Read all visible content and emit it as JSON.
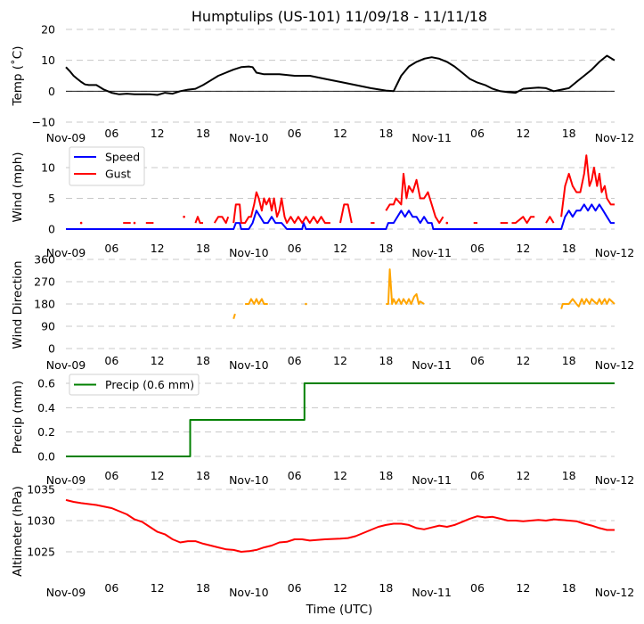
{
  "title": "Humptulips (US-101) 11/09/18 - 11/11/18",
  "xlabel": "Time (UTC)",
  "x_tick_labels": [
    "Nov-09",
    "06",
    "12",
    "18",
    "Nov-10",
    "06",
    "12",
    "18",
    "Nov-11",
    "06",
    "12",
    "18",
    "Nov-12"
  ],
  "x_tick_hours": [
    0,
    6,
    12,
    18,
    24,
    30,
    36,
    42,
    48,
    54,
    60,
    66,
    72
  ],
  "chart_data": [
    {
      "type": "line",
      "id": "temp",
      "ylabel": "Temp ($^\\circ$C)",
      "ylabel_display": "Temp (˚C)",
      "ylim": [
        -10,
        20
      ],
      "yticks": [
        -10,
        0,
        10,
        20
      ],
      "ytick_labels": [
        "−10",
        "0",
        "10",
        "20"
      ],
      "zero_line": true,
      "grid": true,
      "x_unit": "hours since Nov-09 00:00 UTC",
      "series": [
        {
          "name": "Temp",
          "color": "#000000",
          "x": [
            0,
            0.5,
            1,
            1.5,
            2,
            2.5,
            3,
            4,
            5,
            6,
            7,
            8,
            9,
            10,
            11,
            12,
            13,
            14,
            15,
            16,
            17,
            18,
            19,
            20,
            21,
            22,
            23,
            24,
            24.5,
            25,
            26,
            28,
            30,
            32,
            34,
            36,
            38,
            40,
            42,
            43,
            44,
            45,
            46,
            47,
            48,
            49,
            50,
            51,
            52,
            53,
            54,
            55,
            56,
            57,
            58,
            59,
            60,
            61,
            62,
            63,
            64,
            65,
            66,
            67,
            68,
            69,
            70,
            71,
            72
          ],
          "y": [
            7.8,
            6.5,
            5,
            4,
            3,
            2.2,
            2,
            2,
            0.5,
            -0.5,
            -1,
            -0.8,
            -1,
            -1,
            -1,
            -1.2,
            -0.5,
            -0.8,
            0,
            0.5,
            0.8,
            2,
            3.5,
            5,
            6,
            7,
            7.8,
            8,
            7.8,
            6,
            5.5,
            5.5,
            5,
            5,
            4,
            3,
            2,
            1,
            0.2,
            0,
            5,
            8,
            9.5,
            10.5,
            11,
            10.5,
            9.5,
            8,
            6,
            4,
            2.8,
            2,
            0.8,
            0,
            -0.3,
            -0.5,
            0.8,
            1,
            1.2,
            1,
            0,
            0.5,
            1,
            3,
            5,
            7,
            9.5,
            11.5,
            10
          ]
        }
      ]
    },
    {
      "type": "line",
      "id": "wind",
      "ylabel": "Wind (mph)",
      "ylim": [
        0,
        13
      ],
      "yticks": [
        0,
        5,
        10
      ],
      "ytick_labels": [
        "0",
        "5",
        "10"
      ],
      "grid": true,
      "legend": "top-left",
      "series": [
        {
          "name": "Speed",
          "color": "#0000ff",
          "x": [
            0,
            22,
            22.3,
            22.8,
            23,
            24,
            24.5,
            25,
            25.5,
            26,
            26.5,
            27,
            27.5,
            28,
            28.3,
            29,
            30,
            31,
            31.2,
            31.5,
            32,
            42,
            42.3,
            42.5,
            43,
            44,
            44.5,
            45,
            45.5,
            46,
            46.5,
            47,
            47.5,
            48,
            48.2,
            49,
            60,
            65,
            65.5,
            66,
            66.5,
            67,
            67.5,
            68,
            68.5,
            69,
            69.5,
            70,
            70.5,
            71,
            71.5,
            72
          ],
          "y": [
            0,
            0,
            1,
            1,
            0,
            0,
            1,
            3,
            2,
            1,
            1,
            2,
            1,
            1,
            1,
            0,
            0,
            0,
            1,
            0,
            0,
            0,
            1,
            1,
            1,
            3,
            2,
            3,
            2,
            2,
            1,
            2,
            1,
            1,
            0,
            0,
            0,
            0,
            2,
            3,
            2,
            3,
            3,
            4,
            3,
            4,
            3,
            4,
            3,
            2,
            1,
            1
          ]
        },
        {
          "name": "Gust",
          "color": "#ff0000",
          "segments": [
            {
              "x": [
                2
              ],
              "y": [
                1
              ]
            },
            {
              "x": [
                7.5,
                8.5
              ],
              "y": [
                1,
                1
              ]
            },
            {
              "x": [
                9
              ],
              "y": [
                1
              ]
            },
            {
              "x": [
                10.5,
                11.5
              ],
              "y": [
                1,
                1
              ]
            },
            {
              "x": [
                15.5
              ],
              "y": [
                2
              ]
            },
            {
              "x": [
                17,
                17.3,
                17.6,
                18
              ],
              "y": [
                1,
                2,
                1,
                1
              ]
            },
            {
              "x": [
                19.5,
                20,
                20.5,
                21,
                21.3
              ],
              "y": [
                1,
                2,
                2,
                1,
                2
              ]
            },
            {
              "x": [
                22,
                22.3,
                22.8,
                23,
                23.5,
                24,
                24.3,
                24.7,
                25,
                25.3,
                25.7,
                26,
                26.3,
                26.7,
                27,
                27.3,
                27.7,
                28,
                28.3,
                28.7,
                29,
                29.5,
                30,
                30.5,
                31,
                31.5,
                32,
                32.5,
                33,
                33.5,
                34,
                34.3,
                34.7
              ],
              "y": [
                1,
                4,
                4,
                1,
                1,
                2,
                2,
                4,
                6,
                5,
                3,
                5,
                4,
                5,
                3,
                5,
                2,
                3,
                5,
                2,
                1,
                2,
                1,
                2,
                1,
                2,
                1,
                2,
                1,
                2,
                1,
                1,
                1
              ]
            },
            {
              "x": [
                36,
                36.5,
                37,
                37.5
              ],
              "y": [
                1,
                4,
                4,
                1
              ]
            },
            {
              "x": [
                40,
                40.5
              ],
              "y": [
                1,
                1
              ]
            },
            {
              "x": [
                42,
                42.5,
                43,
                43.3,
                44,
                44.3,
                44.7,
                45,
                45.5,
                46,
                46.5,
                47,
                47.5,
                48,
                48.5,
                49,
                49.5
              ],
              "y": [
                3,
                4,
                4,
                5,
                4,
                9,
                5,
                7,
                6,
                8,
                5,
                5,
                6,
                4,
                2,
                1,
                2
              ]
            },
            {
              "x": [
                50
              ],
              "y": [
                1
              ]
            },
            {
              "x": [
                53.5,
                54
              ],
              "y": [
                1,
                1
              ]
            },
            {
              "x": [
                57,
                58
              ],
              "y": [
                1,
                1
              ]
            },
            {
              "x": [
                58.5,
                59,
                60,
                60.5,
                61,
                61.5
              ],
              "y": [
                1,
                1,
                2,
                1,
                2,
                2
              ]
            },
            {
              "x": [
                63,
                63.5,
                64
              ],
              "y": [
                1,
                2,
                1
              ]
            },
            {
              "x": [
                65,
                65.5,
                66,
                66.5,
                67,
                67.5,
                68,
                68.3,
                68.7,
                69,
                69.3,
                69.7,
                70,
                70.3,
                70.7,
                71,
                71.5,
                72
              ],
              "y": [
                2,
                7,
                9,
                7,
                6,
                6,
                9,
                12,
                7,
                8,
                10,
                7,
                9,
                6,
                7,
                5,
                4,
                4
              ]
            }
          ]
        }
      ]
    },
    {
      "type": "line",
      "id": "wind_direction",
      "ylabel": "Wind Direction",
      "ylim": [
        0,
        360
      ],
      "yticks": [
        0,
        90,
        180,
        270,
        360
      ],
      "ytick_labels": [
        "0",
        "90",
        "180",
        "270",
        "360"
      ],
      "grid": true,
      "series": [
        {
          "name": "Direction",
          "color": "#ffa500",
          "segments": [
            {
              "x": [
                22,
                22.2
              ],
              "y": [
                120,
                140
              ]
            },
            {
              "x": [
                23.5,
                24,
                24.3,
                24.7,
                25,
                25.3,
                25.7,
                26,
                26.5
              ],
              "y": [
                180,
                180,
                200,
                180,
                200,
                180,
                200,
                180,
                180
              ]
            },
            {
              "x": [
                31.5
              ],
              "y": [
                180
              ]
            },
            {
              "x": [
                42,
                42.3,
                42.5,
                42.8,
                43,
                43.3,
                43.7,
                44,
                44.3,
                44.7,
                45,
                45.3,
                45.7,
                46,
                46.3,
                46.5,
                47
              ],
              "y": [
                180,
                180,
                320,
                180,
                200,
                180,
                200,
                180,
                200,
                180,
                200,
                180,
                210,
                220,
                180,
                190,
                180
              ]
            },
            {
              "x": [
                65,
                65.2,
                66,
                66.5,
                67,
                67.3,
                67.7,
                68,
                68.3,
                68.7,
                69,
                69.3,
                69.7,
                70,
                70.3,
                70.7,
                71,
                71.3,
                72
              ],
              "y": [
                160,
                180,
                180,
                200,
                180,
                170,
                200,
                180,
                200,
                180,
                200,
                190,
                180,
                200,
                180,
                200,
                180,
                200,
                180
              ]
            }
          ]
        }
      ]
    },
    {
      "type": "line",
      "id": "precip",
      "ylabel": "Precip (mm)",
      "ylim": [
        0,
        0.65
      ],
      "yticks": [
        0.0,
        0.2,
        0.4,
        0.6
      ],
      "ytick_labels": [
        "0.0",
        "0.2",
        "0.4",
        "0.6"
      ],
      "grid": true,
      "legend": "top-left",
      "series": [
        {
          "name": "Precip (0.6 mm)",
          "color": "#008000",
          "x": [
            0,
            16.3,
            16.3,
            31.3,
            31.3,
            72
          ],
          "y": [
            0,
            0,
            0.3,
            0.3,
            0.6,
            0.6
          ]
        }
      ]
    },
    {
      "type": "line",
      "id": "altimeter",
      "ylabel": "Altimeter (hPa)",
      "ylim": [
        1020.5,
        1035
      ],
      "yticks": [
        1025,
        1030,
        1035
      ],
      "ytick_labels": [
        "1025",
        "1030",
        "1035"
      ],
      "grid": true,
      "series": [
        {
          "name": "Altimeter",
          "color": "#ff0000",
          "x": [
            0,
            1,
            2,
            4,
            6,
            7,
            8,
            9,
            10,
            11,
            12,
            13,
            14,
            15,
            16,
            17,
            18,
            19,
            20,
            21,
            22,
            23,
            24,
            25,
            26,
            27,
            28,
            29,
            30,
            31,
            32,
            34,
            36,
            37,
            38,
            39,
            40,
            41,
            42,
            43,
            44,
            45,
            46,
            47,
            48,
            49,
            50,
            51,
            52,
            53,
            54,
            55,
            56,
            57,
            58,
            59,
            60,
            61,
            62,
            63,
            64,
            65,
            66,
            67,
            68,
            69,
            70,
            71,
            72
          ],
          "y": [
            1033.3,
            1033,
            1032.8,
            1032.5,
            1032,
            1031.5,
            1031,
            1030.2,
            1029.8,
            1029,
            1028.2,
            1027.8,
            1027,
            1026.5,
            1026.7,
            1026.7,
            1026.3,
            1026,
            1025.7,
            1025.4,
            1025.3,
            1025,
            1025.1,
            1025.3,
            1025.7,
            1026,
            1026.5,
            1026.6,
            1027,
            1027,
            1026.8,
            1027,
            1027.1,
            1027.2,
            1027.5,
            1028,
            1028.5,
            1029,
            1029.3,
            1029.5,
            1029.5,
            1029.3,
            1028.8,
            1028.6,
            1028.9,
            1029.2,
            1029.0,
            1029.3,
            1029.8,
            1030.3,
            1030.7,
            1030.5,
            1030.6,
            1030.3,
            1030,
            1030,
            1029.9,
            1030.0,
            1030.1,
            1030.0,
            1030.2,
            1030.1,
            1030,
            1029.9,
            1029.5,
            1029.2,
            1028.8,
            1028.5,
            1028.5
          ]
        }
      ]
    }
  ]
}
